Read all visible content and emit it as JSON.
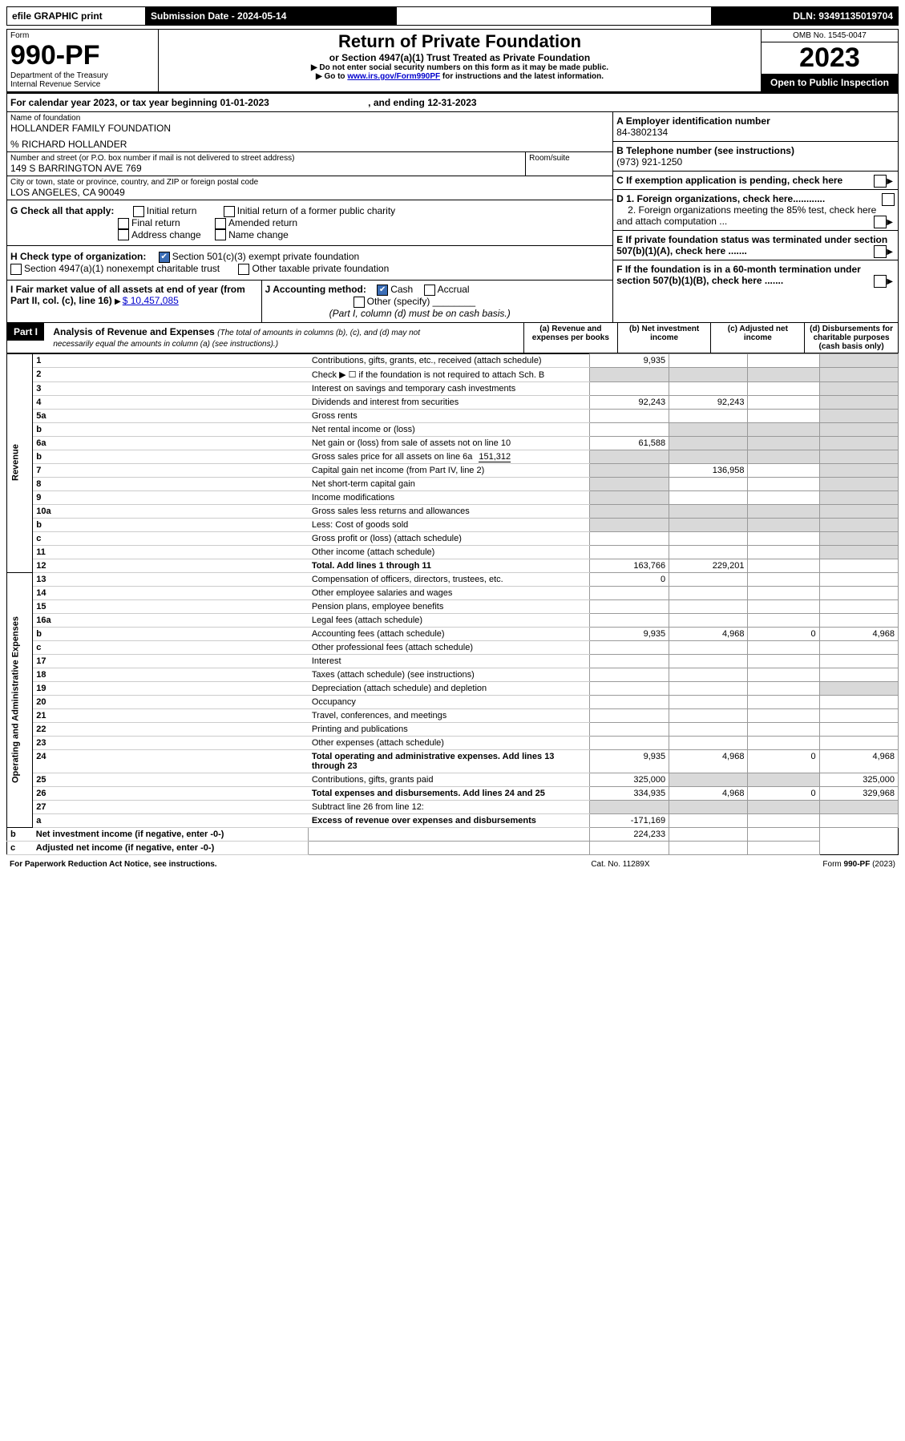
{
  "topbar": {
    "efile": "efile GRAPHIC print",
    "subdate_label": "Submission Date - 2024-05-14",
    "dln": "DLN: 93491135019704"
  },
  "header": {
    "form": "Form",
    "code": "990-PF",
    "dept": "Department of the Treasury",
    "irs": "Internal Revenue Service",
    "title": "Return of Private Foundation",
    "subtitle": "or Section 4947(a)(1) Trust Treated as Private Foundation",
    "instr1": "▶ Do not enter social security numbers on this form as it may be made public.",
    "instr2_prefix": "▶ Go to ",
    "instr2_link": "www.irs.gov/Form990PF",
    "instr2_suffix": " for instructions and the latest information.",
    "omb": "OMB No. 1545-0047",
    "year": "2023",
    "open": "Open to Public Inspection"
  },
  "cal": {
    "prefix": "For calendar year 2023, or tax year beginning ",
    "begin": "01-01-2023",
    "mid": " , and ending ",
    "end": "12-31-2023"
  },
  "id": {
    "name_label": "Name of foundation",
    "name": "HOLLANDER FAMILY FOUNDATION",
    "co": "% RICHARD HOLLANDER",
    "addr_label": "Number and street (or P.O. box number if mail is not delivered to street address)",
    "addr": "149 S BARRINGTON AVE 769",
    "room_label": "Room/suite",
    "city_label": "City or town, state or province, country, and ZIP or foreign postal code",
    "city": "LOS ANGELES, CA  90049",
    "a_label": "A Employer identification number",
    "a": "84-3802134",
    "b_label": "B Telephone number (see instructions)",
    "b": "(973) 921-1250",
    "c_label": "C If exemption application is pending, check here"
  },
  "g": {
    "label": "G Check all that apply:",
    "initial": "Initial return",
    "final": "Final return",
    "addr": "Address change",
    "initial_pub": "Initial return of a former public charity",
    "amended": "Amended return",
    "name": "Name change"
  },
  "h": {
    "label": "H Check type of organization:",
    "c3": "Section 501(c)(3) exempt private foundation",
    "nonexempt": "Section 4947(a)(1) nonexempt charitable trust",
    "other": "Other taxable private foundation"
  },
  "i": {
    "label": "I Fair market value of all assets at end of year (from Part II, col. (c), line 16)",
    "value": "$  10,457,085"
  },
  "j": {
    "label": "J Accounting method:",
    "cash": "Cash",
    "accrual": "Accrual",
    "other": "Other (specify)",
    "note": "(Part I, column (d) must be on cash basis.)"
  },
  "d": {
    "d1": "D 1. Foreign organizations, check here............",
    "d2": "2. Foreign organizations meeting the 85% test, check here and attach computation ..."
  },
  "e": "E  If private foundation status was terminated under section 507(b)(1)(A), check here .......",
  "f": "F  If the foundation is in a 60-month termination under section 507(b)(1)(B), check here .......",
  "part1": {
    "label": "Part I",
    "title": "Analysis of Revenue and Expenses",
    "note": "(The total of amounts in columns (b), (c), and (d) may not necessarily equal the amounts in column (a) (see instructions).)",
    "cols": {
      "a": "(a) Revenue and expenses per books",
      "b": "(b) Net investment income",
      "c": "(c) Adjusted net income",
      "d": "(d) Disbursements for charitable purposes (cash basis only)"
    }
  },
  "sections": {
    "rev": "Revenue",
    "ops": "Operating and Administrative Expenses"
  },
  "rows": [
    {
      "n": "1",
      "t": "Contributions, gifts, grants, etc., received (attach schedule)",
      "a": "9,935",
      "b": "",
      "c": "",
      "d": ""
    },
    {
      "n": "2",
      "t": "Check ▶ ☐ if the foundation is not required to attach Sch. B",
      "dots": true,
      "a": "",
      "b": "",
      "c": "",
      "d": ""
    },
    {
      "n": "3",
      "t": "Interest on savings and temporary cash investments",
      "a": "",
      "b": "",
      "c": "",
      "d": ""
    },
    {
      "n": "4",
      "t": "Dividends and interest from securities",
      "a": "92,243",
      "b": "92,243",
      "c": "",
      "d": ""
    },
    {
      "n": "5a",
      "t": "Gross rents",
      "a": "",
      "b": "",
      "c": "",
      "d": ""
    },
    {
      "n": "b",
      "t": "Net rental income or (loss)",
      "a": "",
      "b": "",
      "c": "",
      "d": ""
    },
    {
      "n": "6a",
      "t": "Net gain or (loss) from sale of assets not on line 10",
      "a": "61,588",
      "b": "",
      "c": "",
      "d": ""
    },
    {
      "n": "b",
      "t": "Gross sales price for all assets on line 6a",
      "inline": "151,312",
      "a": "",
      "b": "",
      "c": "",
      "d": ""
    },
    {
      "n": "7",
      "t": "Capital gain net income (from Part IV, line 2)",
      "a": "",
      "b": "136,958",
      "c": "",
      "d": ""
    },
    {
      "n": "8",
      "t": "Net short-term capital gain",
      "a": "",
      "b": "",
      "c": "",
      "d": ""
    },
    {
      "n": "9",
      "t": "Income modifications",
      "a": "",
      "b": "",
      "c": "",
      "d": ""
    },
    {
      "n": "10a",
      "t": "Gross sales less returns and allowances",
      "a": "",
      "b": "",
      "c": "",
      "d": ""
    },
    {
      "n": "b",
      "t": "Less: Cost of goods sold",
      "a": "",
      "b": "",
      "c": "",
      "d": ""
    },
    {
      "n": "c",
      "t": "Gross profit or (loss) (attach schedule)",
      "a": "",
      "b": "",
      "c": "",
      "d": ""
    },
    {
      "n": "11",
      "t": "Other income (attach schedule)",
      "a": "",
      "b": "",
      "c": "",
      "d": ""
    },
    {
      "n": "12",
      "t": "Total. Add lines 1 through 11",
      "bold": true,
      "a": "163,766",
      "b": "229,201",
      "c": "",
      "d": ""
    },
    {
      "n": "13",
      "t": "Compensation of officers, directors, trustees, etc.",
      "a": "0",
      "b": "",
      "c": "",
      "d": ""
    },
    {
      "n": "14",
      "t": "Other employee salaries and wages",
      "a": "",
      "b": "",
      "c": "",
      "d": ""
    },
    {
      "n": "15",
      "t": "Pension plans, employee benefits",
      "a": "",
      "b": "",
      "c": "",
      "d": ""
    },
    {
      "n": "16a",
      "t": "Legal fees (attach schedule)",
      "a": "",
      "b": "",
      "c": "",
      "d": ""
    },
    {
      "n": "b",
      "t": "Accounting fees (attach schedule)",
      "a": "9,935",
      "b": "4,968",
      "c": "0",
      "d": "4,968"
    },
    {
      "n": "c",
      "t": "Other professional fees (attach schedule)",
      "a": "",
      "b": "",
      "c": "",
      "d": ""
    },
    {
      "n": "17",
      "t": "Interest",
      "a": "",
      "b": "",
      "c": "",
      "d": ""
    },
    {
      "n": "18",
      "t": "Taxes (attach schedule) (see instructions)",
      "a": "",
      "b": "",
      "c": "",
      "d": ""
    },
    {
      "n": "19",
      "t": "Depreciation (attach schedule) and depletion",
      "a": "",
      "b": "",
      "c": "",
      "d": ""
    },
    {
      "n": "20",
      "t": "Occupancy",
      "a": "",
      "b": "",
      "c": "",
      "d": ""
    },
    {
      "n": "21",
      "t": "Travel, conferences, and meetings",
      "a": "",
      "b": "",
      "c": "",
      "d": ""
    },
    {
      "n": "22",
      "t": "Printing and publications",
      "a": "",
      "b": "",
      "c": "",
      "d": ""
    },
    {
      "n": "23",
      "t": "Other expenses (attach schedule)",
      "a": "",
      "b": "",
      "c": "",
      "d": ""
    },
    {
      "n": "24",
      "t": "Total operating and administrative expenses. Add lines 13 through 23",
      "bold": true,
      "a": "9,935",
      "b": "4,968",
      "c": "0",
      "d": "4,968"
    },
    {
      "n": "25",
      "t": "Contributions, gifts, grants paid",
      "a": "325,000",
      "b": "",
      "c": "",
      "d": "325,000"
    },
    {
      "n": "26",
      "t": "Total expenses and disbursements. Add lines 24 and 25",
      "bold": true,
      "a": "334,935",
      "b": "4,968",
      "c": "0",
      "d": "329,968"
    },
    {
      "n": "27",
      "t": "Subtract line 26 from line 12:",
      "a": "",
      "b": "",
      "c": "",
      "d": ""
    },
    {
      "n": "a",
      "t": "Excess of revenue over expenses and disbursements",
      "bold": true,
      "a": "-171,169",
      "b": "",
      "c": "",
      "d": ""
    },
    {
      "n": "b",
      "t": "Net investment income (if negative, enter -0-)",
      "bold": true,
      "a": "",
      "b": "224,233",
      "c": "",
      "d": ""
    },
    {
      "n": "c",
      "t": "Adjusted net income (if negative, enter -0-)",
      "bold": true,
      "a": "",
      "b": "",
      "c": "",
      "d": ""
    }
  ],
  "footer": {
    "left": "For Paperwork Reduction Act Notice, see instructions.",
    "mid": "Cat. No. 11289X",
    "right": "Form 990-PF (2023)"
  },
  "shading": {
    "revenue_d_shaded_until": 12,
    "ops_b_shaded_25": true
  }
}
